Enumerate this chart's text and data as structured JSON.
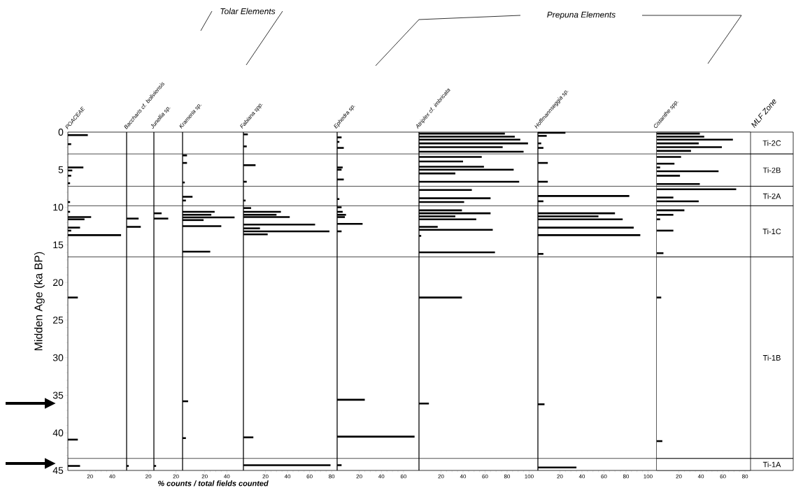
{
  "chart_data": [
    {
      "type": "bar",
      "orientation": "horizontal",
      "title": "POACEAE",
      "ylabel": "Midden Age (ka BP)",
      "color": "#000000",
      "x": [
        0.4,
        1.6,
        4.7,
        5.1,
        5.8,
        6.8,
        9.3,
        10.6,
        11.3,
        11.6,
        12.7,
        13.1,
        13.7,
        22.0,
        40.9,
        44.4
      ],
      "values": [
        18,
        3,
        14,
        4,
        3,
        2,
        2,
        2,
        21,
        15,
        11,
        3,
        48,
        9,
        9,
        11
      ],
      "xlim": [
        0,
        53
      ],
      "xticks": [
        20,
        40
      ],
      "ylim": [
        45,
        0
      ],
      "yticks": [
        0,
        5,
        10,
        15,
        20,
        25,
        30,
        35,
        40,
        45
      ],
      "ref_lines": [
        {
          "axis": "y",
          "value": 2.9
        },
        {
          "axis": "y",
          "value": 7.2
        },
        {
          "axis": "y",
          "value": 9.8
        },
        {
          "axis": "y",
          "value": 16.6
        },
        {
          "axis": "y",
          "value": 43.4
        }
      ]
    },
    {
      "type": "bar",
      "orientation": "horizontal",
      "title": "Baccharis cf. boliviensis",
      "color": "#000000",
      "x": [
        11.5,
        12.6,
        44.4
      ],
      "values": [
        11,
        13,
        2
      ],
      "xlim": [
        0,
        25
      ],
      "xticks": [
        20
      ],
      "ylim": [
        45,
        0
      ],
      "tick_labels": "x",
      "ref_lines": [
        {
          "axis": "y",
          "value": 2.9
        },
        {
          "axis": "y",
          "value": 7.2
        },
        {
          "axis": "y",
          "value": 9.8
        },
        {
          "axis": "y",
          "value": 16.6
        },
        {
          "axis": "y",
          "value": 43.4
        }
      ]
    },
    {
      "type": "bar",
      "orientation": "horizontal",
      "title": "Junellia sp.",
      "color": "#000000",
      "annotations": [
        "Tolar Elements"
      ],
      "x": [
        10.8,
        11.5,
        44.4
      ],
      "values": [
        7,
        13,
        2
      ],
      "xlim": [
        0,
        26
      ],
      "xticks": [
        20
      ],
      "ylim": [
        45,
        0
      ],
      "tick_labels": "x",
      "ref_lines": [
        {
          "axis": "y",
          "value": 2.9
        },
        {
          "axis": "y",
          "value": 7.2
        },
        {
          "axis": "y",
          "value": 9.8
        },
        {
          "axis": "y",
          "value": 16.6
        },
        {
          "axis": "y",
          "value": 43.4
        }
      ]
    },
    {
      "type": "bar",
      "orientation": "horizontal",
      "title": "Krameria sp.",
      "xlabel": "% counts / total fields counted",
      "color": "#000000",
      "x": [
        3.1,
        4.1,
        6.7,
        8.6,
        9.1,
        10.6,
        11.0,
        11.35,
        11.7,
        12.5,
        15.9,
        35.8,
        40.7
      ],
      "values": [
        4,
        4,
        2,
        9,
        3,
        29,
        26,
        47,
        19,
        35,
        25,
        5,
        3
      ],
      "xlim": [
        0,
        55
      ],
      "xticks": [
        20,
        40
      ],
      "ylim": [
        45,
        0
      ],
      "tick_labels": "x",
      "ref_lines": [
        {
          "axis": "y",
          "value": 2.9
        },
        {
          "axis": "y",
          "value": 7.2
        },
        {
          "axis": "y",
          "value": 9.8
        },
        {
          "axis": "y",
          "value": 16.6
        },
        {
          "axis": "y",
          "value": 43.4
        }
      ]
    },
    {
      "type": "bar",
      "orientation": "horizontal",
      "title": "Fabiana spp.",
      "color": "#000000",
      "x": [
        0.3,
        1.9,
        4.4,
        6.6,
        9.1,
        10.1,
        10.6,
        11.0,
        11.3,
        12.3,
        12.8,
        13.2,
        13.6,
        40.6,
        44.3
      ],
      "values": [
        4,
        3,
        11,
        3,
        2,
        7,
        34,
        30,
        42,
        65,
        15,
        78,
        22,
        9,
        79
      ],
      "xlim": [
        0,
        85
      ],
      "xticks": [
        20,
        40,
        60,
        80
      ],
      "ylim": [
        45,
        0
      ],
      "tick_labels": "x",
      "ref_lines": [
        {
          "axis": "y",
          "value": 2.9
        },
        {
          "axis": "y",
          "value": 7.2
        },
        {
          "axis": "y",
          "value": 9.8
        },
        {
          "axis": "y",
          "value": 16.6
        },
        {
          "axis": "y",
          "value": 43.4
        }
      ]
    },
    {
      "type": "bar",
      "orientation": "horizontal",
      "title": "Ephedra sp.",
      "color": "#000000",
      "x": [
        0.7,
        1.3,
        2.1,
        4.7,
        5.0,
        6.3,
        8.9,
        10.0,
        10.6,
        11.0,
        11.3,
        12.2,
        13.2,
        35.6,
        40.5,
        44.3
      ],
      "values": [
        4,
        2,
        6,
        5,
        4,
        6,
        2,
        4,
        5,
        8,
        7,
        23,
        4,
        25,
        70,
        4
      ],
      "xlim": [
        0,
        74
      ],
      "xticks": [
        20,
        40,
        60
      ],
      "ylim": [
        45,
        0
      ],
      "tick_labels": "x",
      "ref_lines": [
        {
          "axis": "y",
          "value": 2.9
        },
        {
          "axis": "y",
          "value": 7.2
        },
        {
          "axis": "y",
          "value": 9.8
        },
        {
          "axis": "y",
          "value": 16.6
        },
        {
          "axis": "y",
          "value": 43.4
        }
      ]
    },
    {
      "type": "bar",
      "orientation": "horizontal",
      "title": "Atriplex cf. imbricata",
      "color": "#000000",
      "x": [
        0.2,
        0.6,
        1.0,
        1.5,
        2.0,
        2.6,
        3.3,
        3.9,
        4.6,
        5.0,
        5.5,
        6.6,
        7.7,
        8.8,
        9.3,
        10.4,
        10.8,
        11.2,
        11.6,
        12.6,
        13.0,
        13.8,
        16.0,
        22.0,
        36.1
      ],
      "values": [
        78,
        87,
        92,
        99,
        76,
        95,
        57,
        40,
        59,
        86,
        33,
        91,
        48,
        65,
        41,
        39,
        65,
        33,
        52,
        17,
        67,
        2,
        69,
        39,
        9
      ],
      "xlim": [
        0,
        108
      ],
      "xticks": [
        20,
        40,
        60,
        80,
        100
      ],
      "ylim": [
        45,
        0
      ],
      "tick_labels": "x",
      "ref_lines": [
        {
          "axis": "y",
          "value": 2.9
        },
        {
          "axis": "y",
          "value": 7.2
        },
        {
          "axis": "y",
          "value": 9.8
        },
        {
          "axis": "y",
          "value": 16.6
        },
        {
          "axis": "y",
          "value": 43.4
        }
      ]
    },
    {
      "type": "bar",
      "orientation": "horizontal",
      "title": "Hoffmannseggia sp.",
      "color": "#000000",
      "annotations": [
        "Prepuna Elements"
      ],
      "x": [
        0.1,
        0.5,
        1.5,
        2.1,
        4.1,
        6.6,
        8.5,
        9.2,
        10.8,
        11.2,
        11.6,
        12.7,
        13.7,
        16.2,
        36.2,
        44.6
      ],
      "values": [
        25,
        8,
        3,
        5,
        9,
        9,
        83,
        5,
        70,
        55,
        77,
        87,
        93,
        5,
        6,
        35
      ],
      "xlim": [
        0,
        108
      ],
      "xticks": [
        20,
        40,
        60,
        80,
        100
      ],
      "ylim": [
        45,
        0
      ],
      "tick_labels": "x",
      "ref_lines": [
        {
          "axis": "y",
          "value": 2.9
        },
        {
          "axis": "y",
          "value": 7.2
        },
        {
          "axis": "y",
          "value": 9.8
        },
        {
          "axis": "y",
          "value": 16.6
        },
        {
          "axis": "y",
          "value": 43.4
        }
      ]
    },
    {
      "type": "bar",
      "orientation": "horizontal",
      "title": "Cistanthe spp.",
      "color": "#000000",
      "annotations": [
        "MLF Zone"
      ],
      "x": [
        0.2,
        0.6,
        1.0,
        1.5,
        2.0,
        2.5,
        3.3,
        4.2,
        4.7,
        5.2,
        5.8,
        6.9,
        7.6,
        8.7,
        9.2,
        10.4,
        11.0,
        11.6,
        13.1,
        16.1,
        22.0,
        41.1
      ],
      "values": [
        39,
        43,
        69,
        38,
        59,
        31,
        22,
        16,
        3,
        56,
        21,
        39,
        72,
        15,
        38,
        25,
        15,
        3,
        15,
        6,
        4,
        5
      ],
      "xlim": [
        0,
        85
      ],
      "xticks": [
        20,
        40,
        60,
        80
      ],
      "ylim": [
        45,
        0
      ],
      "tick_labels": "x",
      "bands": [
        {
          "axis": "y",
          "from": 0,
          "to": 2.9,
          "label": "Ti-2C"
        },
        {
          "axis": "y",
          "from": 2.9,
          "to": 7.2,
          "label": "Ti-2B"
        },
        {
          "axis": "y",
          "from": 7.2,
          "to": 9.8,
          "label": "Ti-2A"
        },
        {
          "axis": "y",
          "from": 9.8,
          "to": 16.6,
          "label": "Ti-1C"
        },
        {
          "axis": "y",
          "from": 16.6,
          "to": 43.4,
          "label": "Ti-1B"
        },
        {
          "axis": "y",
          "from": 43.4,
          "to": 45,
          "label": "Ti-1A"
        }
      ]
    }
  ]
}
